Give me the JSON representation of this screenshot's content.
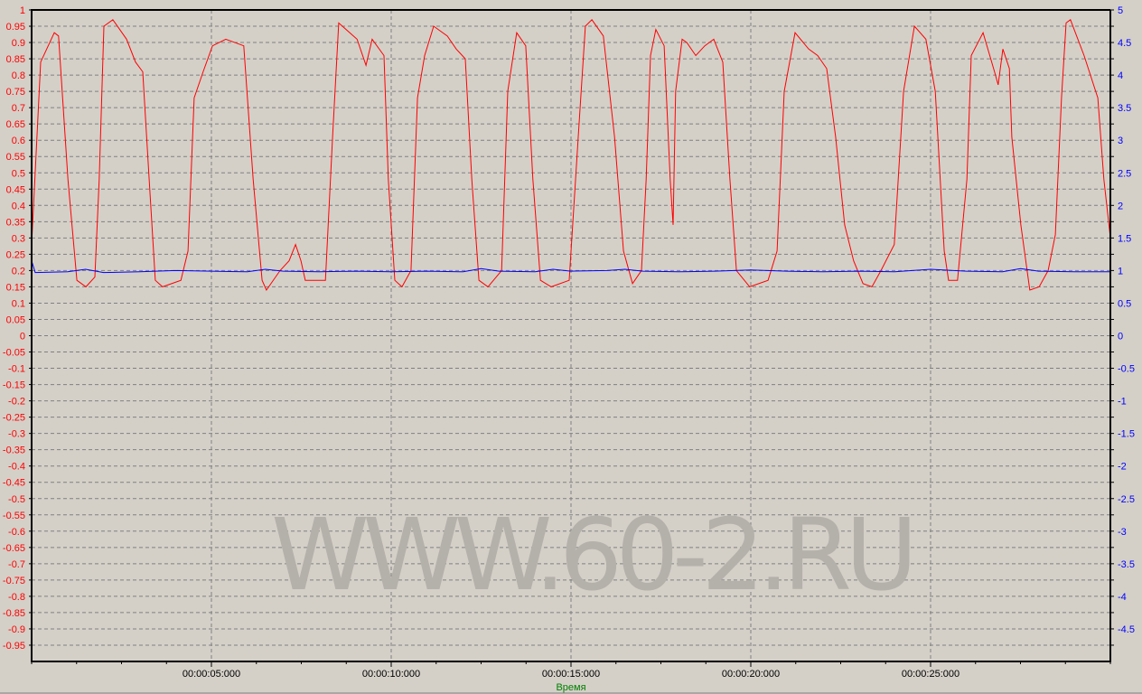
{
  "chart_data": {
    "type": "line",
    "title": "",
    "xlabel": "Время",
    "xlabel_color": "#008000",
    "xlim": [
      0,
      30
    ],
    "x_unit": "seconds",
    "x_tick_labels": [
      "00:00:05:000",
      "00:00:10:000",
      "00:00:15:000",
      "00:00:20:000",
      "00:00:25:000"
    ],
    "x_tick_values": [
      5,
      10,
      15,
      20,
      25
    ],
    "ylim_left": [
      -1,
      1
    ],
    "ylim_right": [
      -5,
      5
    ],
    "y_left_ticks": [
      "1",
      "0.95",
      "0.9",
      "0.85",
      "0.8",
      "0.75",
      "0.7",
      "0.65",
      "0.6",
      "0.55",
      "0.5",
      "0.45",
      "0.4",
      "0.35",
      "0.3",
      "0.25",
      "0.2",
      "0.15",
      "0.1",
      "0.05",
      "0",
      "-0.05",
      "-0.1",
      "-0.15",
      "-0.2",
      "-0.25",
      "-0.3",
      "-0.35",
      "-0.4",
      "-0.45",
      "-0.5",
      "-0.55",
      "-0.6",
      "-0.65",
      "-0.7",
      "-0.75",
      "-0.8",
      "-0.85",
      "-0.9",
      "-0.95"
    ],
    "y_right_ticks": [
      "5",
      "4.5",
      "4",
      "3.5",
      "3",
      "2.5",
      "2",
      "1.5",
      "1",
      "0.5",
      "0",
      "-0.5",
      "-1",
      "-1.5",
      "-2",
      "-2.5",
      "-3",
      "-3.5",
      "-4",
      "-4.5"
    ],
    "grid": true,
    "background": "#d4d0c8",
    "watermark": "WWW.60-2.RU",
    "series": [
      {
        "axis": "left",
        "color": "#ff0000",
        "points": [
          [
            0,
            0.28
          ],
          [
            0.25,
            0.84
          ],
          [
            0.63,
            0.93
          ],
          [
            0.75,
            0.92
          ],
          [
            1.01,
            0.48
          ],
          [
            1.26,
            0.17
          ],
          [
            1.51,
            0.15
          ],
          [
            1.76,
            0.18
          ],
          [
            1.88,
            0.48
          ],
          [
            2.01,
            0.95
          ],
          [
            2.26,
            0.97
          ],
          [
            2.64,
            0.91
          ],
          [
            2.89,
            0.84
          ],
          [
            3.09,
            0.81
          ],
          [
            3.27,
            0.48
          ],
          [
            3.44,
            0.17
          ],
          [
            3.64,
            0.15
          ],
          [
            4.15,
            0.17
          ],
          [
            4.35,
            0.26
          ],
          [
            4.52,
            0.73
          ],
          [
            4.77,
            0.81
          ],
          [
            5.03,
            0.89
          ],
          [
            5.4,
            0.91
          ],
          [
            5.9,
            0.89
          ],
          [
            6.16,
            0.48
          ],
          [
            6.41,
            0.17
          ],
          [
            6.53,
            0.14
          ],
          [
            6.91,
            0.2
          ],
          [
            7.16,
            0.23
          ],
          [
            7.34,
            0.28
          ],
          [
            7.49,
            0.23
          ],
          [
            7.61,
            0.17
          ],
          [
            8.17,
            0.17
          ],
          [
            8.37,
            0.61
          ],
          [
            8.54,
            0.96
          ],
          [
            9.05,
            0.91
          ],
          [
            9.3,
            0.83
          ],
          [
            9.47,
            0.91
          ],
          [
            9.8,
            0.86
          ],
          [
            9.92,
            0.48
          ],
          [
            10.1,
            0.17
          ],
          [
            10.3,
            0.15
          ],
          [
            10.55,
            0.2
          ],
          [
            10.73,
            0.73
          ],
          [
            10.93,
            0.86
          ],
          [
            11.18,
            0.95
          ],
          [
            11.56,
            0.92
          ],
          [
            11.81,
            0.88
          ],
          [
            12.06,
            0.85
          ],
          [
            12.24,
            0.48
          ],
          [
            12.44,
            0.17
          ],
          [
            12.69,
            0.15
          ],
          [
            13.07,
            0.2
          ],
          [
            13.24,
            0.75
          ],
          [
            13.49,
            0.93
          ],
          [
            13.74,
            0.89
          ],
          [
            13.94,
            0.48
          ],
          [
            14.15,
            0.17
          ],
          [
            14.45,
            0.15
          ],
          [
            14.95,
            0.17
          ],
          [
            15.2,
            0.61
          ],
          [
            15.4,
            0.95
          ],
          [
            15.58,
            0.97
          ],
          [
            15.9,
            0.92
          ],
          [
            16.21,
            0.61
          ],
          [
            16.46,
            0.26
          ],
          [
            16.71,
            0.16
          ],
          [
            16.96,
            0.2
          ],
          [
            17.09,
            0.48
          ],
          [
            17.21,
            0.86
          ],
          [
            17.36,
            0.94
          ],
          [
            17.59,
            0.89
          ],
          [
            17.76,
            0.48
          ],
          [
            17.84,
            0.34
          ],
          [
            17.91,
            0.75
          ],
          [
            18.09,
            0.91
          ],
          [
            18.22,
            0.9
          ],
          [
            18.47,
            0.86
          ],
          [
            18.72,
            0.89
          ],
          [
            18.97,
            0.91
          ],
          [
            19.22,
            0.84
          ],
          [
            19.42,
            0.48
          ],
          [
            19.6,
            0.2
          ],
          [
            19.97,
            0.15
          ],
          [
            20.48,
            0.17
          ],
          [
            20.73,
            0.26
          ],
          [
            20.93,
            0.75
          ],
          [
            21.23,
            0.93
          ],
          [
            21.61,
            0.88
          ],
          [
            21.86,
            0.86
          ],
          [
            22.11,
            0.82
          ],
          [
            22.36,
            0.61
          ],
          [
            22.61,
            0.34
          ],
          [
            22.86,
            0.23
          ],
          [
            23.12,
            0.16
          ],
          [
            23.37,
            0.15
          ],
          [
            23.62,
            0.2
          ],
          [
            23.99,
            0.28
          ],
          [
            24.25,
            0.75
          ],
          [
            24.55,
            0.95
          ],
          [
            24.87,
            0.91
          ],
          [
            25.13,
            0.75
          ],
          [
            25.38,
            0.26
          ],
          [
            25.5,
            0.17
          ],
          [
            25.75,
            0.17
          ],
          [
            26.01,
            0.48
          ],
          [
            26.13,
            0.86
          ],
          [
            26.46,
            0.93
          ],
          [
            26.78,
            0.81
          ],
          [
            26.88,
            0.77
          ],
          [
            27.01,
            0.88
          ],
          [
            27.19,
            0.82
          ],
          [
            27.26,
            0.61
          ],
          [
            27.51,
            0.34
          ],
          [
            27.76,
            0.14
          ],
          [
            28.02,
            0.15
          ],
          [
            28.27,
            0.2
          ],
          [
            28.47,
            0.31
          ],
          [
            28.64,
            0.73
          ],
          [
            28.77,
            0.96
          ],
          [
            28.89,
            0.97
          ],
          [
            29.27,
            0.86
          ],
          [
            29.65,
            0.73
          ],
          [
            29.82,
            0.48
          ],
          [
            30,
            0.3
          ]
        ]
      },
      {
        "axis": "right",
        "color": "#0000ff",
        "points": [
          [
            0,
            1.15
          ],
          [
            0.1,
            0.97
          ],
          [
            1,
            0.98
          ],
          [
            1.5,
            1.02
          ],
          [
            2,
            0.97
          ],
          [
            3,
            0.98
          ],
          [
            4,
            1.0
          ],
          [
            5,
            0.99
          ],
          [
            6,
            0.98
          ],
          [
            6.5,
            1.02
          ],
          [
            7,
            0.99
          ],
          [
            8,
            0.98
          ],
          [
            9,
            0.99
          ],
          [
            10,
            0.98
          ],
          [
            11,
            0.99
          ],
          [
            12,
            0.98
          ],
          [
            12.5,
            1.03
          ],
          [
            13,
            0.99
          ],
          [
            14,
            0.98
          ],
          [
            14.5,
            1.02
          ],
          [
            15,
            0.99
          ],
          [
            16,
            1.0
          ],
          [
            16.5,
            1.02
          ],
          [
            17,
            0.99
          ],
          [
            18,
            0.98
          ],
          [
            19,
            0.99
          ],
          [
            20,
            1.01
          ],
          [
            21,
            0.99
          ],
          [
            22,
            0.98
          ],
          [
            23,
            0.99
          ],
          [
            24,
            0.98
          ],
          [
            25,
            1.02
          ],
          [
            26,
            0.99
          ],
          [
            27,
            0.98
          ],
          [
            27.5,
            1.03
          ],
          [
            28,
            0.99
          ],
          [
            29,
            0.98
          ],
          [
            30,
            0.98
          ]
        ]
      }
    ]
  }
}
